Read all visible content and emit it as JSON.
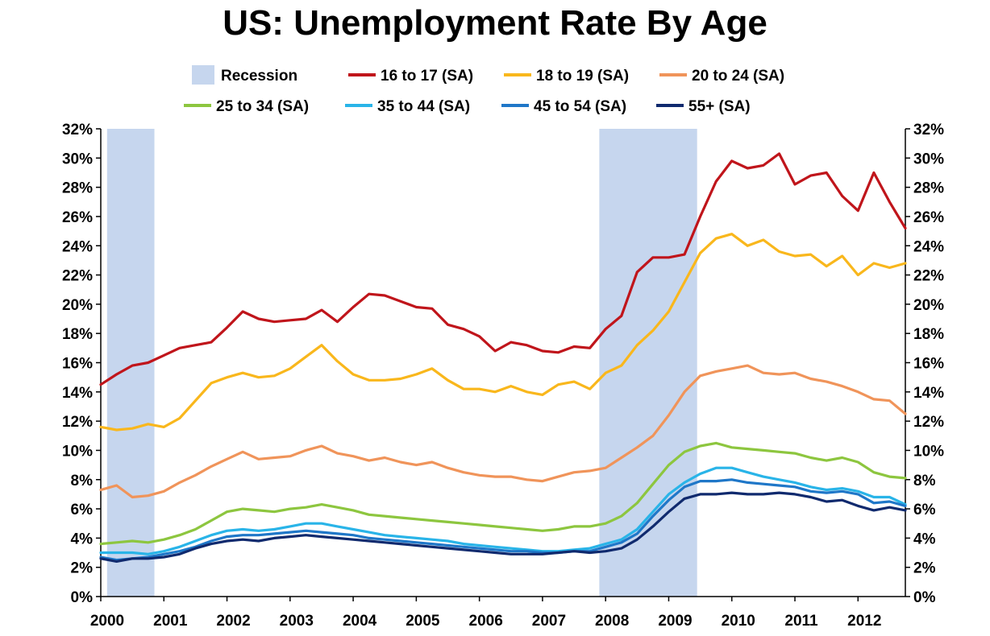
{
  "chart_data": {
    "type": "line",
    "title": "US: Unemployment Rate By Age",
    "y_axis": {
      "min": 0,
      "max": 32,
      "step": 2,
      "tick_suffix": "%",
      "dual": true
    },
    "x_axis": {
      "min": 2000,
      "max": 2012.75,
      "tick_labels": [
        "2000",
        "2001",
        "2002",
        "2003",
        "2004",
        "2005",
        "2006",
        "2007",
        "2008",
        "2009",
        "2010",
        "2011",
        "2012"
      ]
    },
    "grid": false,
    "legend_position": "top",
    "recessions": [
      {
        "label": "Recession",
        "start": 2000.1,
        "end": 2000.85,
        "color": "#c6d6ee"
      },
      {
        "label": "Recession",
        "start": 2007.9,
        "end": 2009.45,
        "color": "#c6d6ee"
      }
    ],
    "series": [
      {
        "name": "16 to 17 (SA)",
        "color": "#c0151b",
        "x": [
          2000.0,
          2000.25,
          2000.5,
          2000.75,
          2001.0,
          2001.25,
          2001.5,
          2001.75,
          2002.0,
          2002.25,
          2002.5,
          2002.75,
          2003.0,
          2003.25,
          2003.5,
          2003.75,
          2004.0,
          2004.25,
          2004.5,
          2004.75,
          2005.0,
          2005.25,
          2005.5,
          2005.75,
          2006.0,
          2006.25,
          2006.5,
          2006.75,
          2007.0,
          2007.25,
          2007.5,
          2007.75,
          2008.0,
          2008.25,
          2008.5,
          2008.75,
          2009.0,
          2009.25,
          2009.5,
          2009.75,
          2010.0,
          2010.25,
          2010.5,
          2010.75,
          2011.0,
          2011.25,
          2011.5,
          2011.75,
          2012.0,
          2012.25,
          2012.5,
          2012.75
        ],
        "y": [
          14.5,
          15.2,
          15.8,
          16.0,
          16.5,
          17.0,
          17.2,
          17.4,
          18.4,
          19.5,
          19.0,
          18.8,
          18.9,
          19.0,
          19.6,
          18.8,
          19.8,
          20.7,
          20.6,
          20.2,
          19.8,
          19.7,
          18.6,
          18.3,
          17.8,
          16.8,
          17.4,
          17.2,
          16.8,
          16.7,
          17.1,
          17.0,
          18.3,
          19.2,
          22.2,
          23.2,
          23.2,
          23.4,
          26.0,
          28.4,
          29.8,
          29.3,
          29.5,
          30.3,
          28.2,
          28.8,
          29.0,
          27.4,
          26.4,
          29.0,
          27.0,
          25.2
        ]
      },
      {
        "name": "18 to 19 (SA)",
        "color": "#f9b71c",
        "x": [
          2000.0,
          2000.25,
          2000.5,
          2000.75,
          2001.0,
          2001.25,
          2001.5,
          2001.75,
          2002.0,
          2002.25,
          2002.5,
          2002.75,
          2003.0,
          2003.25,
          2003.5,
          2003.75,
          2004.0,
          2004.25,
          2004.5,
          2004.75,
          2005.0,
          2005.25,
          2005.5,
          2005.75,
          2006.0,
          2006.25,
          2006.5,
          2006.75,
          2007.0,
          2007.25,
          2007.5,
          2007.75,
          2008.0,
          2008.25,
          2008.5,
          2008.75,
          2009.0,
          2009.25,
          2009.5,
          2009.75,
          2010.0,
          2010.25,
          2010.5,
          2010.75,
          2011.0,
          2011.25,
          2011.5,
          2011.75,
          2012.0,
          2012.25,
          2012.5,
          2012.75
        ],
        "y": [
          11.6,
          11.4,
          11.5,
          11.8,
          11.6,
          12.2,
          13.4,
          14.6,
          15.0,
          15.3,
          15.0,
          15.1,
          15.6,
          16.4,
          17.2,
          16.1,
          15.2,
          14.8,
          14.8,
          14.9,
          15.2,
          15.6,
          14.8,
          14.2,
          14.2,
          14.0,
          14.4,
          14.0,
          13.8,
          14.5,
          14.7,
          14.2,
          15.3,
          15.8,
          17.2,
          18.2,
          19.5,
          21.5,
          23.5,
          24.5,
          24.8,
          24.0,
          24.4,
          23.6,
          23.3,
          23.4,
          22.6,
          23.3,
          22.0,
          22.8,
          22.5,
          22.8
        ]
      },
      {
        "name": "20 to 24 (SA)",
        "color": "#f0945a",
        "x": [
          2000.0,
          2000.25,
          2000.5,
          2000.75,
          2001.0,
          2001.25,
          2001.5,
          2001.75,
          2002.0,
          2002.25,
          2002.5,
          2002.75,
          2003.0,
          2003.25,
          2003.5,
          2003.75,
          2004.0,
          2004.25,
          2004.5,
          2004.75,
          2005.0,
          2005.25,
          2005.5,
          2005.75,
          2006.0,
          2006.25,
          2006.5,
          2006.75,
          2007.0,
          2007.25,
          2007.5,
          2007.75,
          2008.0,
          2008.25,
          2008.5,
          2008.75,
          2009.0,
          2009.25,
          2009.5,
          2009.75,
          2010.0,
          2010.25,
          2010.5,
          2010.75,
          2011.0,
          2011.25,
          2011.5,
          2011.75,
          2012.0,
          2012.25,
          2012.5,
          2012.75
        ],
        "y": [
          7.3,
          7.6,
          6.8,
          6.9,
          7.2,
          7.8,
          8.3,
          8.9,
          9.4,
          9.9,
          9.4,
          9.5,
          9.6,
          10.0,
          10.3,
          9.8,
          9.6,
          9.3,
          9.5,
          9.2,
          9.0,
          9.2,
          8.8,
          8.5,
          8.3,
          8.2,
          8.2,
          8.0,
          7.9,
          8.2,
          8.5,
          8.6,
          8.8,
          9.5,
          10.2,
          11.0,
          12.4,
          14.0,
          15.1,
          15.4,
          15.6,
          15.8,
          15.3,
          15.2,
          15.3,
          14.9,
          14.7,
          14.4,
          14.0,
          13.5,
          13.4,
          12.5
        ]
      },
      {
        "name": "25 to 34 (SA)",
        "color": "#8dc63f",
        "x": [
          2000.0,
          2000.25,
          2000.5,
          2000.75,
          2001.0,
          2001.25,
          2001.5,
          2001.75,
          2002.0,
          2002.25,
          2002.5,
          2002.75,
          2003.0,
          2003.25,
          2003.5,
          2003.75,
          2004.0,
          2004.25,
          2004.5,
          2004.75,
          2005.0,
          2005.25,
          2005.5,
          2005.75,
          2006.0,
          2006.25,
          2006.5,
          2006.75,
          2007.0,
          2007.25,
          2007.5,
          2007.75,
          2008.0,
          2008.25,
          2008.5,
          2008.75,
          2009.0,
          2009.25,
          2009.5,
          2009.75,
          2010.0,
          2010.25,
          2010.5,
          2010.75,
          2011.0,
          2011.25,
          2011.5,
          2011.75,
          2012.0,
          2012.25,
          2012.5,
          2012.75
        ],
        "y": [
          3.6,
          3.7,
          3.8,
          3.7,
          3.9,
          4.2,
          4.6,
          5.2,
          5.8,
          6.0,
          5.9,
          5.8,
          6.0,
          6.1,
          6.3,
          6.1,
          5.9,
          5.6,
          5.5,
          5.4,
          5.3,
          5.2,
          5.1,
          5.0,
          4.9,
          4.8,
          4.7,
          4.6,
          4.5,
          4.6,
          4.8,
          4.8,
          5.0,
          5.5,
          6.4,
          7.7,
          9.0,
          9.9,
          10.3,
          10.5,
          10.2,
          10.1,
          10.0,
          9.9,
          9.8,
          9.5,
          9.3,
          9.5,
          9.2,
          8.5,
          8.2,
          8.1
        ]
      },
      {
        "name": "35 to 44 (SA)",
        "color": "#29b4e8",
        "x": [
          2000.0,
          2000.25,
          2000.5,
          2000.75,
          2001.0,
          2001.25,
          2001.5,
          2001.75,
          2002.0,
          2002.25,
          2002.5,
          2002.75,
          2003.0,
          2003.25,
          2003.5,
          2003.75,
          2004.0,
          2004.25,
          2004.5,
          2004.75,
          2005.0,
          2005.25,
          2005.5,
          2005.75,
          2006.0,
          2006.25,
          2006.5,
          2006.75,
          2007.0,
          2007.25,
          2007.5,
          2007.75,
          2008.0,
          2008.25,
          2008.5,
          2008.75,
          2009.0,
          2009.25,
          2009.5,
          2009.75,
          2010.0,
          2010.25,
          2010.5,
          2010.75,
          2011.0,
          2011.25,
          2011.5,
          2011.75,
          2012.0,
          2012.25,
          2012.5,
          2012.75
        ],
        "y": [
          3.0,
          3.0,
          3.0,
          2.9,
          3.1,
          3.4,
          3.8,
          4.2,
          4.5,
          4.6,
          4.5,
          4.6,
          4.8,
          5.0,
          5.0,
          4.8,
          4.6,
          4.4,
          4.2,
          4.1,
          4.0,
          3.9,
          3.8,
          3.6,
          3.5,
          3.4,
          3.3,
          3.2,
          3.1,
          3.1,
          3.2,
          3.3,
          3.6,
          3.9,
          4.6,
          5.8,
          7.0,
          7.8,
          8.4,
          8.8,
          8.8,
          8.5,
          8.2,
          8.0,
          7.8,
          7.5,
          7.3,
          7.4,
          7.2,
          6.8,
          6.8,
          6.3
        ]
      },
      {
        "name": "45 to 54 (SA)",
        "color": "#1f77c8",
        "x": [
          2000.0,
          2000.25,
          2000.5,
          2000.75,
          2001.0,
          2001.25,
          2001.5,
          2001.75,
          2002.0,
          2002.25,
          2002.5,
          2002.75,
          2003.0,
          2003.25,
          2003.5,
          2003.75,
          2004.0,
          2004.25,
          2004.5,
          2004.75,
          2005.0,
          2005.25,
          2005.5,
          2005.75,
          2006.0,
          2006.25,
          2006.5,
          2006.75,
          2007.0,
          2007.25,
          2007.5,
          2007.75,
          2008.0,
          2008.25,
          2008.5,
          2008.75,
          2009.0,
          2009.25,
          2009.5,
          2009.75,
          2010.0,
          2010.25,
          2010.5,
          2010.75,
          2011.0,
          2011.25,
          2011.5,
          2011.75,
          2012.0,
          2012.25,
          2012.5,
          2012.75
        ],
        "y": [
          2.7,
          2.5,
          2.6,
          2.7,
          2.9,
          3.1,
          3.4,
          3.8,
          4.1,
          4.2,
          4.2,
          4.3,
          4.4,
          4.5,
          4.4,
          4.3,
          4.2,
          4.0,
          3.9,
          3.8,
          3.7,
          3.6,
          3.5,
          3.4,
          3.3,
          3.2,
          3.1,
          3.1,
          3.0,
          3.0,
          3.1,
          3.1,
          3.4,
          3.7,
          4.3,
          5.5,
          6.6,
          7.5,
          7.9,
          7.9,
          8.0,
          7.8,
          7.7,
          7.6,
          7.5,
          7.2,
          7.1,
          7.2,
          7.0,
          6.4,
          6.5,
          6.2
        ]
      },
      {
        "name": "55+ (SA)",
        "color": "#102a6e",
        "x": [
          2000.0,
          2000.25,
          2000.5,
          2000.75,
          2001.0,
          2001.25,
          2001.5,
          2001.75,
          2002.0,
          2002.25,
          2002.5,
          2002.75,
          2003.0,
          2003.25,
          2003.5,
          2003.75,
          2004.0,
          2004.25,
          2004.5,
          2004.75,
          2005.0,
          2005.25,
          2005.5,
          2005.75,
          2006.0,
          2006.25,
          2006.5,
          2006.75,
          2007.0,
          2007.25,
          2007.5,
          2007.75,
          2008.0,
          2008.25,
          2008.5,
          2008.75,
          2009.0,
          2009.25,
          2009.5,
          2009.75,
          2010.0,
          2010.25,
          2010.5,
          2010.75,
          2011.0,
          2011.25,
          2011.5,
          2011.75,
          2012.0,
          2012.25,
          2012.5,
          2012.75
        ],
        "y": [
          2.6,
          2.4,
          2.6,
          2.6,
          2.7,
          2.9,
          3.3,
          3.6,
          3.8,
          3.9,
          3.8,
          4.0,
          4.1,
          4.2,
          4.1,
          4.0,
          3.9,
          3.8,
          3.7,
          3.6,
          3.5,
          3.4,
          3.3,
          3.2,
          3.1,
          3.0,
          2.9,
          2.9,
          2.9,
          3.0,
          3.1,
          3.0,
          3.1,
          3.3,
          3.9,
          4.8,
          5.8,
          6.7,
          7.0,
          7.0,
          7.1,
          7.0,
          7.0,
          7.1,
          7.0,
          6.8,
          6.5,
          6.6,
          6.2,
          5.9,
          6.1,
          5.9
        ]
      }
    ]
  }
}
